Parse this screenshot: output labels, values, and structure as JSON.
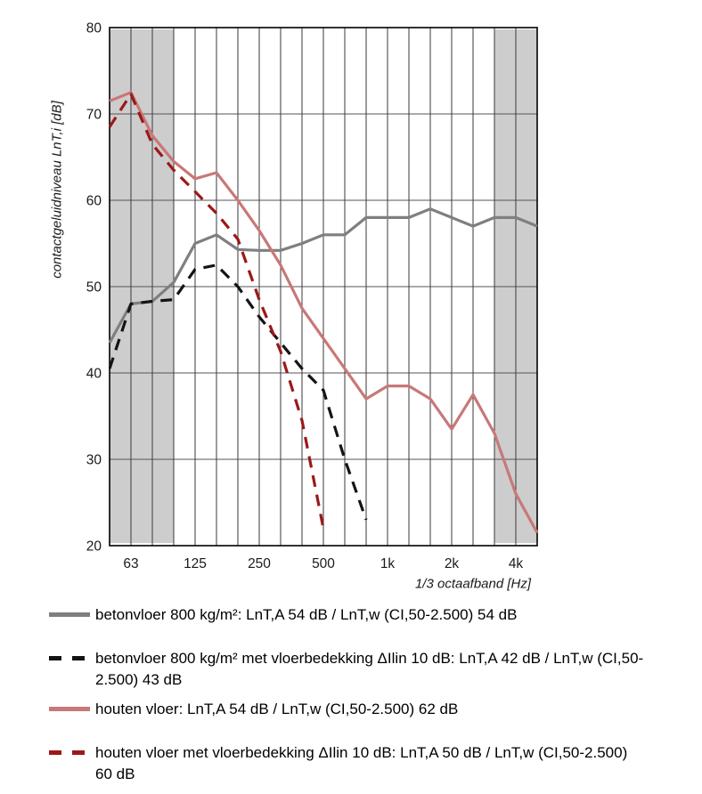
{
  "chart_data": {
    "type": "line",
    "title": "",
    "xlabel": "1/3 octaafband [Hz]",
    "ylabel": "contactgeluidniveau LnT,i [dB]",
    "ylim": [
      20,
      80
    ],
    "y_ticks": [
      80,
      70,
      60,
      50,
      40,
      30,
      20
    ],
    "grid": "on",
    "legend_position": "below",
    "categories": [
      "50",
      "63",
      "80",
      "100",
      "125",
      "160",
      "200",
      "250",
      "315",
      "400",
      "500",
      "630",
      "800",
      "1k",
      "1.25k",
      "1.6k",
      "2k",
      "2.5k",
      "3.15k",
      "4k",
      "5k"
    ],
    "x_tick_marks": [
      {
        "index": 1,
        "label": "63"
      },
      {
        "index": 4,
        "label": "125"
      },
      {
        "index": 7,
        "label": "250"
      },
      {
        "index": 10,
        "label": "500"
      },
      {
        "index": 13,
        "label": "1k"
      },
      {
        "index": 16,
        "label": "2k"
      },
      {
        "index": 19,
        "label": "4k"
      }
    ],
    "shaded_regions": {
      "color": "#cdcdcd",
      "band_index_ranges": [
        [
          0,
          3
        ],
        [
          18,
          20
        ]
      ]
    },
    "series": [
      {
        "id": "betonvloer",
        "label": "betonvloer 800 kg/m²: LnT,A 54 dB / LnT,w (CI,50-2.500) 54 dB",
        "color": "#7f7f7f",
        "style": "solid",
        "values": [
          43.5,
          48,
          48.3,
          50.5,
          55,
          56,
          54.3,
          54.2,
          54.2,
          55,
          56,
          56,
          58,
          58,
          58,
          59,
          58,
          57,
          58,
          58,
          57
        ]
      },
      {
        "id": "betonvloer-met-vloerbedekking",
        "label": "betonvloer 800 kg/m² met vloerbedekking ΔIlin 10 dB: LnT,A 42 dB / LnT,w (CI,50-2.500) 43 dB",
        "color": "#141414",
        "style": "dashed",
        "values": [
          40.5,
          48,
          48.3,
          48.5,
          52,
          52.5,
          50,
          46.5,
          43.5,
          40.5,
          38,
          30,
          23,
          null,
          null,
          null,
          null,
          null,
          null,
          null,
          null
        ],
        "axis_exit": [
          12.75,
          20
        ]
      },
      {
        "id": "houten-vloer",
        "label": "houten vloer: LnT,A 54 dB / LnT,w (CI,50-2.500) 62 dB",
        "color": "#c87878",
        "style": "solid",
        "values": [
          71.5,
          72.5,
          67.5,
          64.5,
          62.5,
          63.2,
          60,
          56.5,
          52.5,
          47.5,
          44,
          40.5,
          37,
          38.5,
          38.5,
          37,
          33.5,
          37.5,
          33,
          26,
          21.5
        ]
      },
      {
        "id": "houten-vloer-met-vloerbedekking",
        "label": "houten vloer met vloerbedekking ΔIlin 10 dB: LnT,A 50 dB / LnT,w (CI,50-2.500) 60 dB",
        "color": "#9b1919",
        "style": "dashed",
        "values": [
          68.5,
          72.3,
          66.5,
          63.5,
          61,
          58.5,
          55.5,
          48.5,
          42.5,
          34.5,
          22,
          null,
          null,
          null,
          null,
          null,
          null,
          null,
          null,
          null,
          null
        ],
        "axis_exit": [
          10.4,
          20
        ]
      }
    ]
  }
}
